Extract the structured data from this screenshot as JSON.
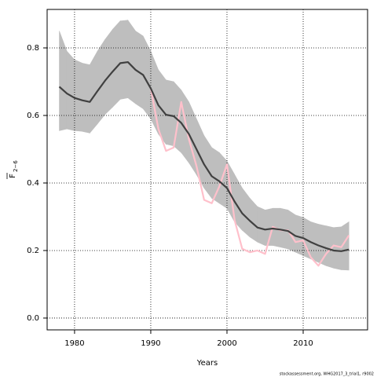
{
  "chart_data": {
    "type": "line",
    "xlabel": "Years",
    "ylabel": "F",
    "ylabel_subscript": "2−6",
    "footnote": "stockassessment.org, WHG2017_3_trial1, r9002",
    "x": [
      1978,
      1979,
      1980,
      1981,
      1982,
      1983,
      1984,
      1985,
      1986,
      1987,
      1988,
      1989,
      1990,
      1991,
      1992,
      1993,
      1994,
      1995,
      1996,
      1997,
      1998,
      1999,
      2000,
      2001,
      2002,
      2003,
      2004,
      2005,
      2006,
      2007,
      2008,
      2009,
      2010,
      2011,
      2012,
      2013,
      2014,
      2015,
      2016
    ],
    "band": {
      "color": "#bebebe",
      "upper": [
        0.85,
        0.79,
        0.765,
        0.755,
        0.75,
        0.79,
        0.825,
        0.855,
        0.88,
        0.882,
        0.85,
        0.835,
        0.79,
        0.735,
        0.705,
        0.7,
        0.675,
        0.64,
        0.59,
        0.54,
        0.505,
        0.49,
        0.465,
        0.425,
        0.385,
        0.355,
        0.33,
        0.32,
        0.325,
        0.325,
        0.32,
        0.305,
        0.298,
        0.285,
        0.278,
        0.273,
        0.268,
        0.27,
        0.285
      ],
      "lower": [
        0.555,
        0.56,
        0.555,
        0.553,
        0.548,
        0.575,
        0.603,
        0.625,
        0.648,
        0.652,
        0.635,
        0.62,
        0.59,
        0.545,
        0.515,
        0.51,
        0.49,
        0.46,
        0.425,
        0.385,
        0.355,
        0.34,
        0.325,
        0.285,
        0.26,
        0.24,
        0.225,
        0.215,
        0.215,
        0.21,
        0.205,
        0.195,
        0.185,
        0.175,
        0.165,
        0.155,
        0.148,
        0.143,
        0.142
      ]
    },
    "series": [
      {
        "color": "#ffc0cb",
        "values": [
          null,
          null,
          null,
          null,
          null,
          null,
          null,
          null,
          null,
          null,
          null,
          null,
          0.68,
          0.56,
          0.495,
          0.505,
          0.64,
          0.53,
          0.45,
          0.35,
          0.34,
          0.39,
          0.455,
          0.29,
          0.205,
          0.195,
          0.2,
          0.19,
          0.27,
          0.26,
          0.26,
          0.225,
          0.23,
          0.18,
          0.155,
          0.19,
          0.215,
          0.21,
          0.245
        ]
      },
      {
        "color": "#404040",
        "values": [
          0.685,
          0.665,
          0.652,
          0.645,
          0.64,
          0.672,
          0.703,
          0.73,
          0.755,
          0.758,
          0.735,
          0.72,
          0.68,
          0.63,
          0.602,
          0.598,
          0.578,
          0.545,
          0.5,
          0.455,
          0.42,
          0.405,
          0.385,
          0.345,
          0.31,
          0.288,
          0.268,
          0.262,
          0.265,
          0.262,
          0.258,
          0.243,
          0.237,
          0.225,
          0.215,
          0.207,
          0.2,
          0.198,
          0.203
        ]
      }
    ],
    "xlim": [
      1976.4,
      2018.45
    ],
    "xticks": [
      1980,
      1990,
      2000,
      2010
    ],
    "ylim": [
      -0.035,
      0.914
    ],
    "yticks": [
      {
        "value": 0,
        "label": "0.0"
      },
      0.2,
      0.4,
      0.6,
      0.8
    ],
    "grid": true
  }
}
